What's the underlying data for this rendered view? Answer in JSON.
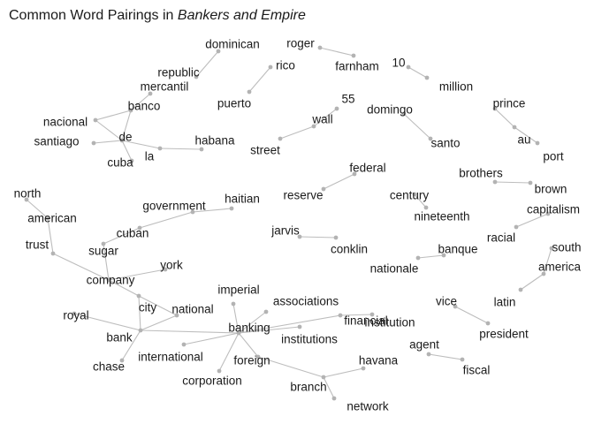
{
  "title": {
    "prefix": "Common Word Pairings in ",
    "italic": "Bankers and Empire"
  },
  "graph": {
    "nodes": [
      "dominican",
      "republic",
      "mercantil",
      "banco",
      "nacional",
      "santiago",
      "de",
      "cuba",
      "la",
      "habana",
      "rico",
      "puerto",
      "roger",
      "farnham",
      "10",
      "million",
      "wall",
      "55",
      "street",
      "domingo",
      "santo",
      "prince",
      "au",
      "port",
      "federal",
      "reserve",
      "century",
      "nineteenth",
      "brothers",
      "brown",
      "capitalism",
      "racial",
      "government",
      "haitian",
      "cuban",
      "sugar",
      "north",
      "american",
      "trust",
      "company",
      "york",
      "city",
      "jarvis",
      "conklin",
      "banque",
      "nationale",
      "south",
      "america",
      "latin",
      "imperial",
      "associations",
      "institution",
      "financial",
      "institutions",
      "national",
      "banking",
      "vice",
      "president",
      "royal",
      "bank",
      "international",
      "chase",
      "agent",
      "fiscal",
      "foreign",
      "corporation",
      "havana",
      "branch",
      "network"
    ],
    "edges": [
      [
        "dominican",
        "republic"
      ],
      [
        "mercantil",
        "banco"
      ],
      [
        "banco",
        "nacional"
      ],
      [
        "banco",
        "de"
      ],
      [
        "nacional",
        "de"
      ],
      [
        "santiago",
        "de"
      ],
      [
        "de",
        "cuba"
      ],
      [
        "de",
        "la"
      ],
      [
        "la",
        "habana"
      ],
      [
        "rico",
        "puerto"
      ],
      [
        "roger",
        "farnham"
      ],
      [
        "10",
        "million"
      ],
      [
        "wall",
        "55"
      ],
      [
        "wall",
        "street"
      ],
      [
        "domingo",
        "santo"
      ],
      [
        "prince",
        "au"
      ],
      [
        "au",
        "port"
      ],
      [
        "federal",
        "reserve"
      ],
      [
        "century",
        "nineteenth"
      ],
      [
        "brothers",
        "brown"
      ],
      [
        "capitalism",
        "racial"
      ],
      [
        "government",
        "haitian"
      ],
      [
        "government",
        "cuban"
      ],
      [
        "cuban",
        "sugar"
      ],
      [
        "north",
        "american"
      ],
      [
        "american",
        "trust"
      ],
      [
        "trust",
        "company"
      ],
      [
        "sugar",
        "company"
      ],
      [
        "company",
        "york"
      ],
      [
        "company",
        "city"
      ],
      [
        "jarvis",
        "conklin"
      ],
      [
        "banque",
        "nationale"
      ],
      [
        "south",
        "america"
      ],
      [
        "america",
        "latin"
      ],
      [
        "vice",
        "president"
      ],
      [
        "agent",
        "fiscal"
      ],
      [
        "city",
        "bank"
      ],
      [
        "city",
        "national"
      ],
      [
        "national",
        "bank"
      ],
      [
        "royal",
        "bank"
      ],
      [
        "bank",
        "chase"
      ],
      [
        "bank",
        "banking"
      ],
      [
        "international",
        "banking"
      ],
      [
        "banking",
        "associations"
      ],
      [
        "banking",
        "imperial"
      ],
      [
        "banking",
        "institutions"
      ],
      [
        "banking",
        "financial"
      ],
      [
        "financial",
        "institution"
      ],
      [
        "banking",
        "foreign"
      ],
      [
        "banking",
        "corporation"
      ],
      [
        "foreign",
        "branch"
      ],
      [
        "branch",
        "havana"
      ],
      [
        "branch",
        "network"
      ]
    ]
  }
}
